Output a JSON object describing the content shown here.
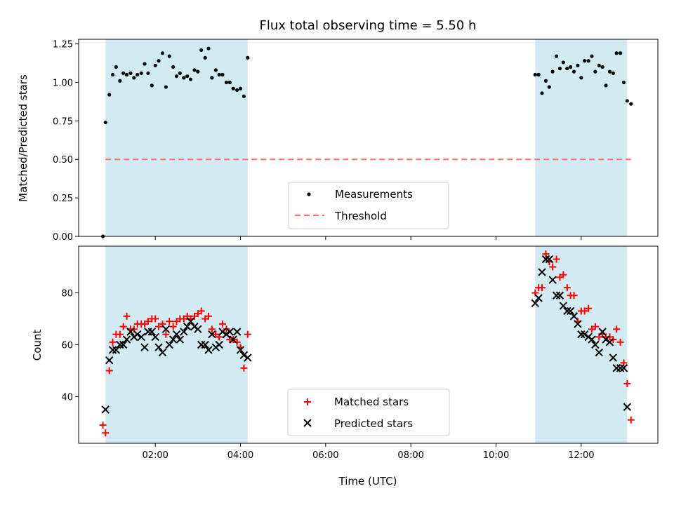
{
  "chart_data": [
    {
      "type": "scatter",
      "title": "Flux total observing time = 5.50 h",
      "xlabel": "",
      "ylabel": "Matched/Predicted stars",
      "xlim": [
        0.2,
        13.8
      ],
      "ylim": [
        0.0,
        1.28
      ],
      "yticks": [
        0.0,
        0.25,
        0.5,
        0.75,
        1.0,
        1.25
      ],
      "ytick_labels": [
        "0.00",
        "0.25",
        "0.50",
        "0.75",
        "1.00",
        "1.25"
      ],
      "shaded_intervals": [
        [
          0.83,
          4.17
        ],
        [
          10.92,
          13.08
        ]
      ],
      "shade_color": "#add8e6",
      "threshold": {
        "name": "Threshold",
        "value": 0.5,
        "x_range": [
          0.83,
          13.17
        ],
        "color": "#ff6b6b"
      },
      "legend": {
        "position": "lower-center",
        "entries": [
          "Measurements",
          "Threshold"
        ]
      },
      "series": [
        {
          "name": "Measurements",
          "color": "#000000",
          "x": [
            0.77,
            0.83,
            0.92,
            1.0,
            1.08,
            1.17,
            1.25,
            1.33,
            1.42,
            1.5,
            1.58,
            1.67,
            1.75,
            1.83,
            1.92,
            2.0,
            2.08,
            2.17,
            2.25,
            2.33,
            2.42,
            2.5,
            2.58,
            2.67,
            2.75,
            2.83,
            2.92,
            3.0,
            3.08,
            3.17,
            3.25,
            3.33,
            3.42,
            3.5,
            3.58,
            3.67,
            3.75,
            3.83,
            3.92,
            4.0,
            4.08,
            4.17,
            10.92,
            11.0,
            11.08,
            11.17,
            11.25,
            11.33,
            11.42,
            11.5,
            11.58,
            11.67,
            11.75,
            11.83,
            11.92,
            12.0,
            12.08,
            12.17,
            12.25,
            12.33,
            12.42,
            12.5,
            12.58,
            12.67,
            12.75,
            12.83,
            12.92,
            13.0,
            13.08,
            13.17
          ],
          "y": [
            0.0,
            0.74,
            0.92,
            1.05,
            1.1,
            1.01,
            1.06,
            1.05,
            1.06,
            1.03,
            1.05,
            1.06,
            1.12,
            1.06,
            0.98,
            1.11,
            1.14,
            1.19,
            0.97,
            1.17,
            1.1,
            1.04,
            1.06,
            1.03,
            1.04,
            1.02,
            1.08,
            1.07,
            1.21,
            1.16,
            1.22,
            1.03,
            1.08,
            1.05,
            1.05,
            1.0,
            1.0,
            0.96,
            0.95,
            0.96,
            0.91,
            1.16,
            1.05,
            1.05,
            0.93,
            1.01,
            0.97,
            1.07,
            1.17,
            1.09,
            1.13,
            1.09,
            1.1,
            1.07,
            1.11,
            1.03,
            1.14,
            1.14,
            1.17,
            1.07,
            1.11,
            1.1,
            0.98,
            1.07,
            1.06,
            1.19,
            1.19,
            1.0,
            0.88,
            0.86
          ]
        }
      ]
    },
    {
      "type": "scatter",
      "title": "",
      "xlabel": "Time (UTC)",
      "ylabel": "Count",
      "xlim": [
        0.2,
        13.8
      ],
      "ylim": [
        22,
        98
      ],
      "xticks": [
        2,
        4,
        6,
        8,
        10,
        12
      ],
      "xtick_labels": [
        "02:00",
        "04:00",
        "06:00",
        "08:00",
        "10:00",
        "12:00"
      ],
      "yticks": [
        40,
        60,
        80
      ],
      "ytick_labels": [
        "40",
        "60",
        "80"
      ],
      "shaded_intervals": [
        [
          0.83,
          4.17
        ],
        [
          10.92,
          13.08
        ]
      ],
      "shade_color": "#add8e6",
      "legend": {
        "position": "lower-center",
        "entries": [
          "Matched stars",
          "Predicted stars"
        ]
      },
      "series": [
        {
          "name": "Matched stars",
          "marker": "plus",
          "color": "#ff0000",
          "x": [
            0.77,
            0.83,
            0.92,
            1.0,
            1.08,
            1.17,
            1.25,
            1.33,
            1.42,
            1.5,
            1.58,
            1.67,
            1.75,
            1.83,
            1.92,
            2.0,
            2.08,
            2.17,
            2.25,
            2.33,
            2.42,
            2.5,
            2.58,
            2.67,
            2.75,
            2.83,
            2.92,
            3.0,
            3.08,
            3.17,
            3.25,
            3.33,
            3.42,
            3.5,
            3.58,
            3.67,
            3.75,
            3.83,
            3.92,
            4.0,
            4.08,
            4.17,
            10.92,
            11.0,
            11.08,
            11.17,
            11.25,
            11.33,
            11.42,
            11.5,
            11.58,
            11.67,
            11.75,
            11.83,
            11.92,
            12.0,
            12.08,
            12.17,
            12.25,
            12.33,
            12.42,
            12.5,
            12.58,
            12.67,
            12.75,
            12.83,
            12.92,
            13.0,
            13.08,
            13.17
          ],
          "y": [
            29,
            26,
            50,
            61,
            64,
            64,
            67,
            71,
            66,
            66,
            68,
            68,
            68,
            69,
            70,
            70,
            67,
            68,
            64,
            69,
            67,
            69,
            70,
            70,
            71,
            70,
            71,
            72,
            73,
            70,
            71,
            66,
            64,
            63,
            68,
            66,
            62,
            62,
            61,
            59,
            51,
            64,
            80,
            82,
            82,
            95,
            92,
            90,
            93,
            86,
            87,
            82,
            79,
            79,
            69,
            73,
            73,
            74,
            66,
            67,
            63,
            64,
            63,
            63,
            62,
            66,
            61,
            53,
            45,
            31
          ],
          "y2": [
            null,
            null,
            null,
            null,
            null,
            null,
            null,
            null,
            null,
            null,
            null,
            null,
            null,
            null,
            null,
            null,
            null,
            null,
            null,
            null,
            null,
            null,
            null,
            null,
            null,
            null,
            null,
            null,
            null,
            null,
            null,
            null,
            null,
            null,
            null,
            null,
            null,
            null,
            null,
            null,
            null,
            null,
            null,
            null,
            null,
            null,
            null,
            null,
            null,
            null,
            null,
            null,
            null,
            null,
            null,
            null,
            null,
            null,
            null,
            null,
            null,
            null,
            null,
            null,
            null,
            null,
            null,
            null,
            null,
            null
          ]
        },
        {
          "name": "Predicted stars",
          "marker": "x",
          "color": "#000000",
          "x": [
            0.83,
            0.92,
            1.0,
            1.08,
            1.17,
            1.25,
            1.33,
            1.42,
            1.5,
            1.58,
            1.67,
            1.75,
            1.83,
            1.92,
            2.0,
            2.08,
            2.17,
            2.25,
            2.33,
            2.42,
            2.5,
            2.58,
            2.67,
            2.75,
            2.83,
            2.92,
            3.0,
            3.08,
            3.17,
            3.25,
            3.33,
            3.42,
            3.5,
            3.58,
            3.67,
            3.75,
            3.83,
            3.92,
            4.0,
            4.08,
            4.17,
            10.92,
            11.0,
            11.08,
            11.17,
            11.25,
            11.33,
            11.42,
            11.5,
            11.58,
            11.67,
            11.75,
            11.83,
            11.92,
            12.0,
            12.08,
            12.17,
            12.25,
            12.33,
            12.42,
            12.5,
            12.58,
            12.67,
            12.75,
            12.83,
            12.92,
            13.0,
            13.08,
            13.17
          ],
          "y": [
            35,
            54,
            58,
            58,
            60,
            60,
            62,
            65,
            63,
            64,
            63,
            59,
            65,
            65,
            63,
            59,
            57,
            66,
            60,
            62,
            64,
            62,
            65,
            67,
            69,
            67,
            66,
            60,
            60,
            58,
            64,
            59,
            60,
            65,
            64,
            65,
            62,
            65,
            58,
            56,
            55,
            76,
            78,
            88,
            93,
            93,
            85,
            79,
            79,
            75,
            73,
            73,
            71,
            68,
            64,
            64,
            63,
            62,
            60,
            57,
            65,
            62,
            61,
            55,
            51,
            51,
            51,
            36,
            null
          ],
          "y2": []
        }
      ]
    }
  ]
}
